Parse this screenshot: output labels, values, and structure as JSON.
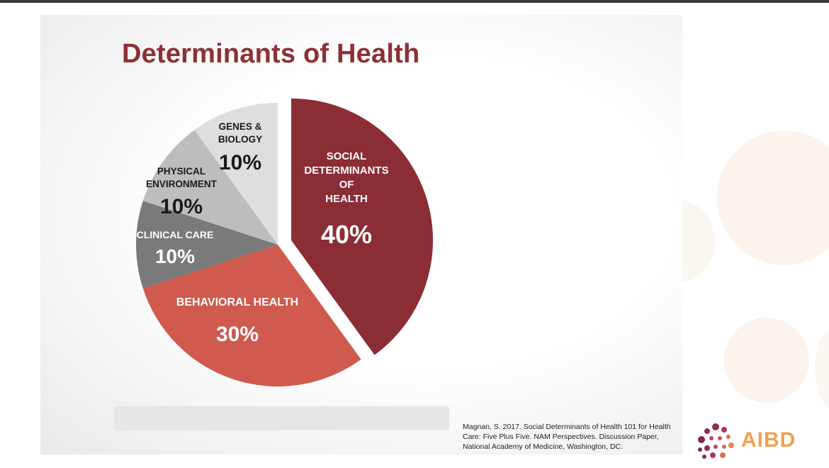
{
  "slide": {
    "title": "Determinants of Health",
    "citation": "Magnan, S. 2017. Social Determinants of Health 101 for Health Care: Five Plus Five. NAM Perspectives. Discussion Paper, National Academy of Medicine, Washington, DC."
  },
  "logo": {
    "text": "AIBD",
    "icon": "dots-logo-icon",
    "color": "#f0a050"
  },
  "chart_data": {
    "type": "pie",
    "title": "Determinants of Health",
    "slices": [
      {
        "label": [
          "SOCIAL",
          "DETERMINANTS",
          "OF",
          "HEALTH"
        ],
        "value": 40,
        "value_label": "40%",
        "color": "#8b2d35",
        "exploded": true
      },
      {
        "label": [
          "BEHAVIORAL HEALTH"
        ],
        "value": 30,
        "value_label": "30%",
        "color": "#cf5a4d",
        "exploded": false
      },
      {
        "label": [
          "CLINICAL CARE"
        ],
        "value": 10,
        "value_label": "10%",
        "color": "#7a7a7a",
        "exploded": false
      },
      {
        "label": [
          "PHYSICAL",
          "ENVIRONMENT"
        ],
        "value": 10,
        "value_label": "10%",
        "color": "#bdbdbd",
        "exploded": false
      },
      {
        "label": [
          "GENES &",
          "BIOLOGY"
        ],
        "value": 10,
        "value_label": "10%",
        "color": "#dedede",
        "exploded": false
      }
    ]
  }
}
